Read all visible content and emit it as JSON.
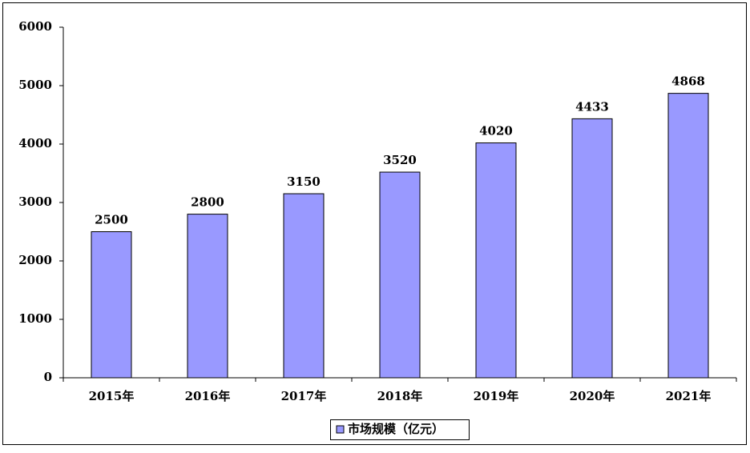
{
  "chart_data": {
    "type": "bar",
    "categories": [
      "2015年",
      "2016年",
      "2017年",
      "2018年",
      "2019年",
      "2020年",
      "2021年"
    ],
    "series": [
      {
        "name": "市场规模（亿元）",
        "color": "#9999ff",
        "values": [
          2500,
          2800,
          3150,
          3520,
          4020,
          4433,
          4868
        ]
      }
    ],
    "ylim": [
      0,
      6000
    ],
    "yticks": [
      0,
      1000,
      2000,
      3000,
      4000,
      5000,
      6000
    ],
    "grid": false,
    "legend": "bottom"
  }
}
